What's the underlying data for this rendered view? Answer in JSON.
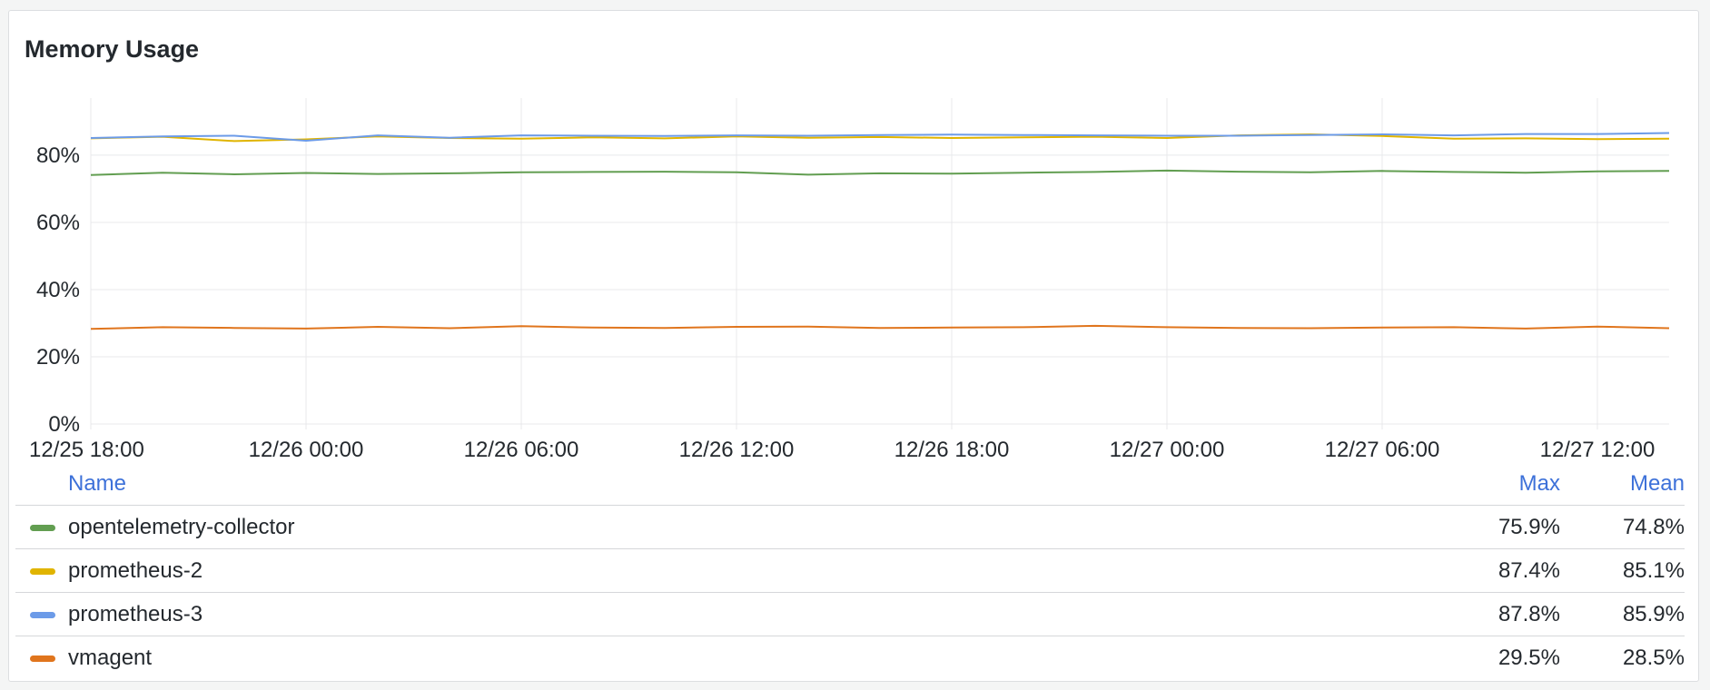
{
  "panel": {
    "title": "Memory Usage"
  },
  "legend": {
    "headers": {
      "name": "Name",
      "max": "Max",
      "mean": "Mean"
    },
    "rows": [
      {
        "name": "opentelemetry-collector",
        "color": "#629e51",
        "max": "75.9%",
        "mean": "74.8%"
      },
      {
        "name": "prometheus-2",
        "color": "#e0b400",
        "max": "87.4%",
        "mean": "85.1%"
      },
      {
        "name": "prometheus-3",
        "color": "#6c9be8",
        "max": "87.8%",
        "mean": "85.9%"
      },
      {
        "name": "vmagent",
        "color": "#e0751d",
        "max": "29.5%",
        "mean": "28.5%"
      }
    ]
  },
  "chart_data": {
    "type": "line",
    "title": "Memory Usage",
    "xlabel": "",
    "ylabel": "",
    "x_ticks": [
      "12/25 18:00",
      "12/26 00:00",
      "12/26 06:00",
      "12/26 12:00",
      "12/26 18:00",
      "12/27 00:00",
      "12/27 06:00",
      "12/27 12:00"
    ],
    "y_ticks": [
      "0%",
      "20%",
      "40%",
      "60%",
      "80%"
    ],
    "ylim": [
      0,
      97
    ],
    "x_range": [
      "12/25 18:00",
      "12/27 14:00"
    ],
    "grid": true,
    "legend_position": "bottom",
    "series": [
      {
        "name": "opentelemetry-collector",
        "color": "#629e51",
        "x": [
          "12/25 18:00",
          "12/25 20:00",
          "12/25 22:00",
          "12/26 00:00",
          "12/26 02:00",
          "12/26 04:00",
          "12/26 06:00",
          "12/26 08:00",
          "12/26 10:00",
          "12/26 12:00",
          "12/26 14:00",
          "12/26 16:00",
          "12/26 18:00",
          "12/26 20:00",
          "12/26 22:00",
          "12/27 00:00",
          "12/27 02:00",
          "12/27 04:00",
          "12/27 06:00",
          "12/27 08:00",
          "12/27 10:00",
          "12/27 12:00",
          "12/27 14:00"
        ],
        "values": [
          74.1,
          74.8,
          74.3,
          74.7,
          74.4,
          74.6,
          74.9,
          75.0,
          75.1,
          74.9,
          74.2,
          74.6,
          74.5,
          74.8,
          75.0,
          75.4,
          75.1,
          74.9,
          75.3,
          75.0,
          74.8,
          75.2,
          75.3
        ]
      },
      {
        "name": "prometheus-2",
        "color": "#e0b400",
        "x": [
          "12/25 18:00",
          "12/25 20:00",
          "12/25 22:00",
          "12/26 00:00",
          "12/26 02:00",
          "12/26 04:00",
          "12/26 06:00",
          "12/26 08:00",
          "12/26 10:00",
          "12/26 12:00",
          "12/26 14:00",
          "12/26 16:00",
          "12/26 18:00",
          "12/26 20:00",
          "12/26 22:00",
          "12/27 00:00",
          "12/27 02:00",
          "12/27 04:00",
          "12/27 06:00",
          "12/27 08:00",
          "12/27 10:00",
          "12/27 12:00",
          "12/27 14:00"
        ],
        "values": [
          85.0,
          85.5,
          84.2,
          84.7,
          85.6,
          85.1,
          84.9,
          85.3,
          85.0,
          85.6,
          85.2,
          85.4,
          85.1,
          85.3,
          85.5,
          85.1,
          85.9,
          86.2,
          85.7,
          84.9,
          85.0,
          84.8,
          84.9
        ]
      },
      {
        "name": "prometheus-3",
        "color": "#6c9be8",
        "x": [
          "12/25 18:00",
          "12/25 20:00",
          "12/25 22:00",
          "12/26 00:00",
          "12/26 02:00",
          "12/26 04:00",
          "12/26 06:00",
          "12/26 08:00",
          "12/26 10:00",
          "12/26 12:00",
          "12/26 14:00",
          "12/26 16:00",
          "12/26 18:00",
          "12/26 20:00",
          "12/26 22:00",
          "12/27 00:00",
          "12/27 02:00",
          "12/27 04:00",
          "12/27 06:00",
          "12/27 08:00",
          "12/27 10:00",
          "12/27 12:00",
          "12/27 14:00"
        ],
        "values": [
          85.1,
          85.6,
          85.8,
          84.3,
          85.9,
          85.2,
          85.9,
          85.8,
          85.7,
          85.9,
          85.8,
          86.0,
          86.1,
          86.0,
          85.9,
          85.8,
          85.8,
          86.0,
          86.2,
          85.9,
          86.3,
          86.3,
          86.6
        ]
      },
      {
        "name": "vmagent",
        "color": "#e0751d",
        "x": [
          "12/25 18:00",
          "12/25 20:00",
          "12/25 22:00",
          "12/26 00:00",
          "12/26 02:00",
          "12/26 04:00",
          "12/26 06:00",
          "12/26 08:00",
          "12/26 10:00",
          "12/26 12:00",
          "12/26 14:00",
          "12/26 16:00",
          "12/26 18:00",
          "12/26 20:00",
          "12/26 22:00",
          "12/27 00:00",
          "12/27 02:00",
          "12/27 04:00",
          "12/27 06:00",
          "12/27 08:00",
          "12/27 10:00",
          "12/27 12:00",
          "12/27 14:00"
        ],
        "values": [
          28.3,
          28.8,
          28.6,
          28.4,
          28.9,
          28.5,
          29.1,
          28.7,
          28.6,
          28.9,
          29.0,
          28.6,
          28.7,
          28.8,
          29.2,
          28.8,
          28.6,
          28.5,
          28.7,
          28.8,
          28.4,
          29.0,
          28.5
        ]
      }
    ]
  }
}
